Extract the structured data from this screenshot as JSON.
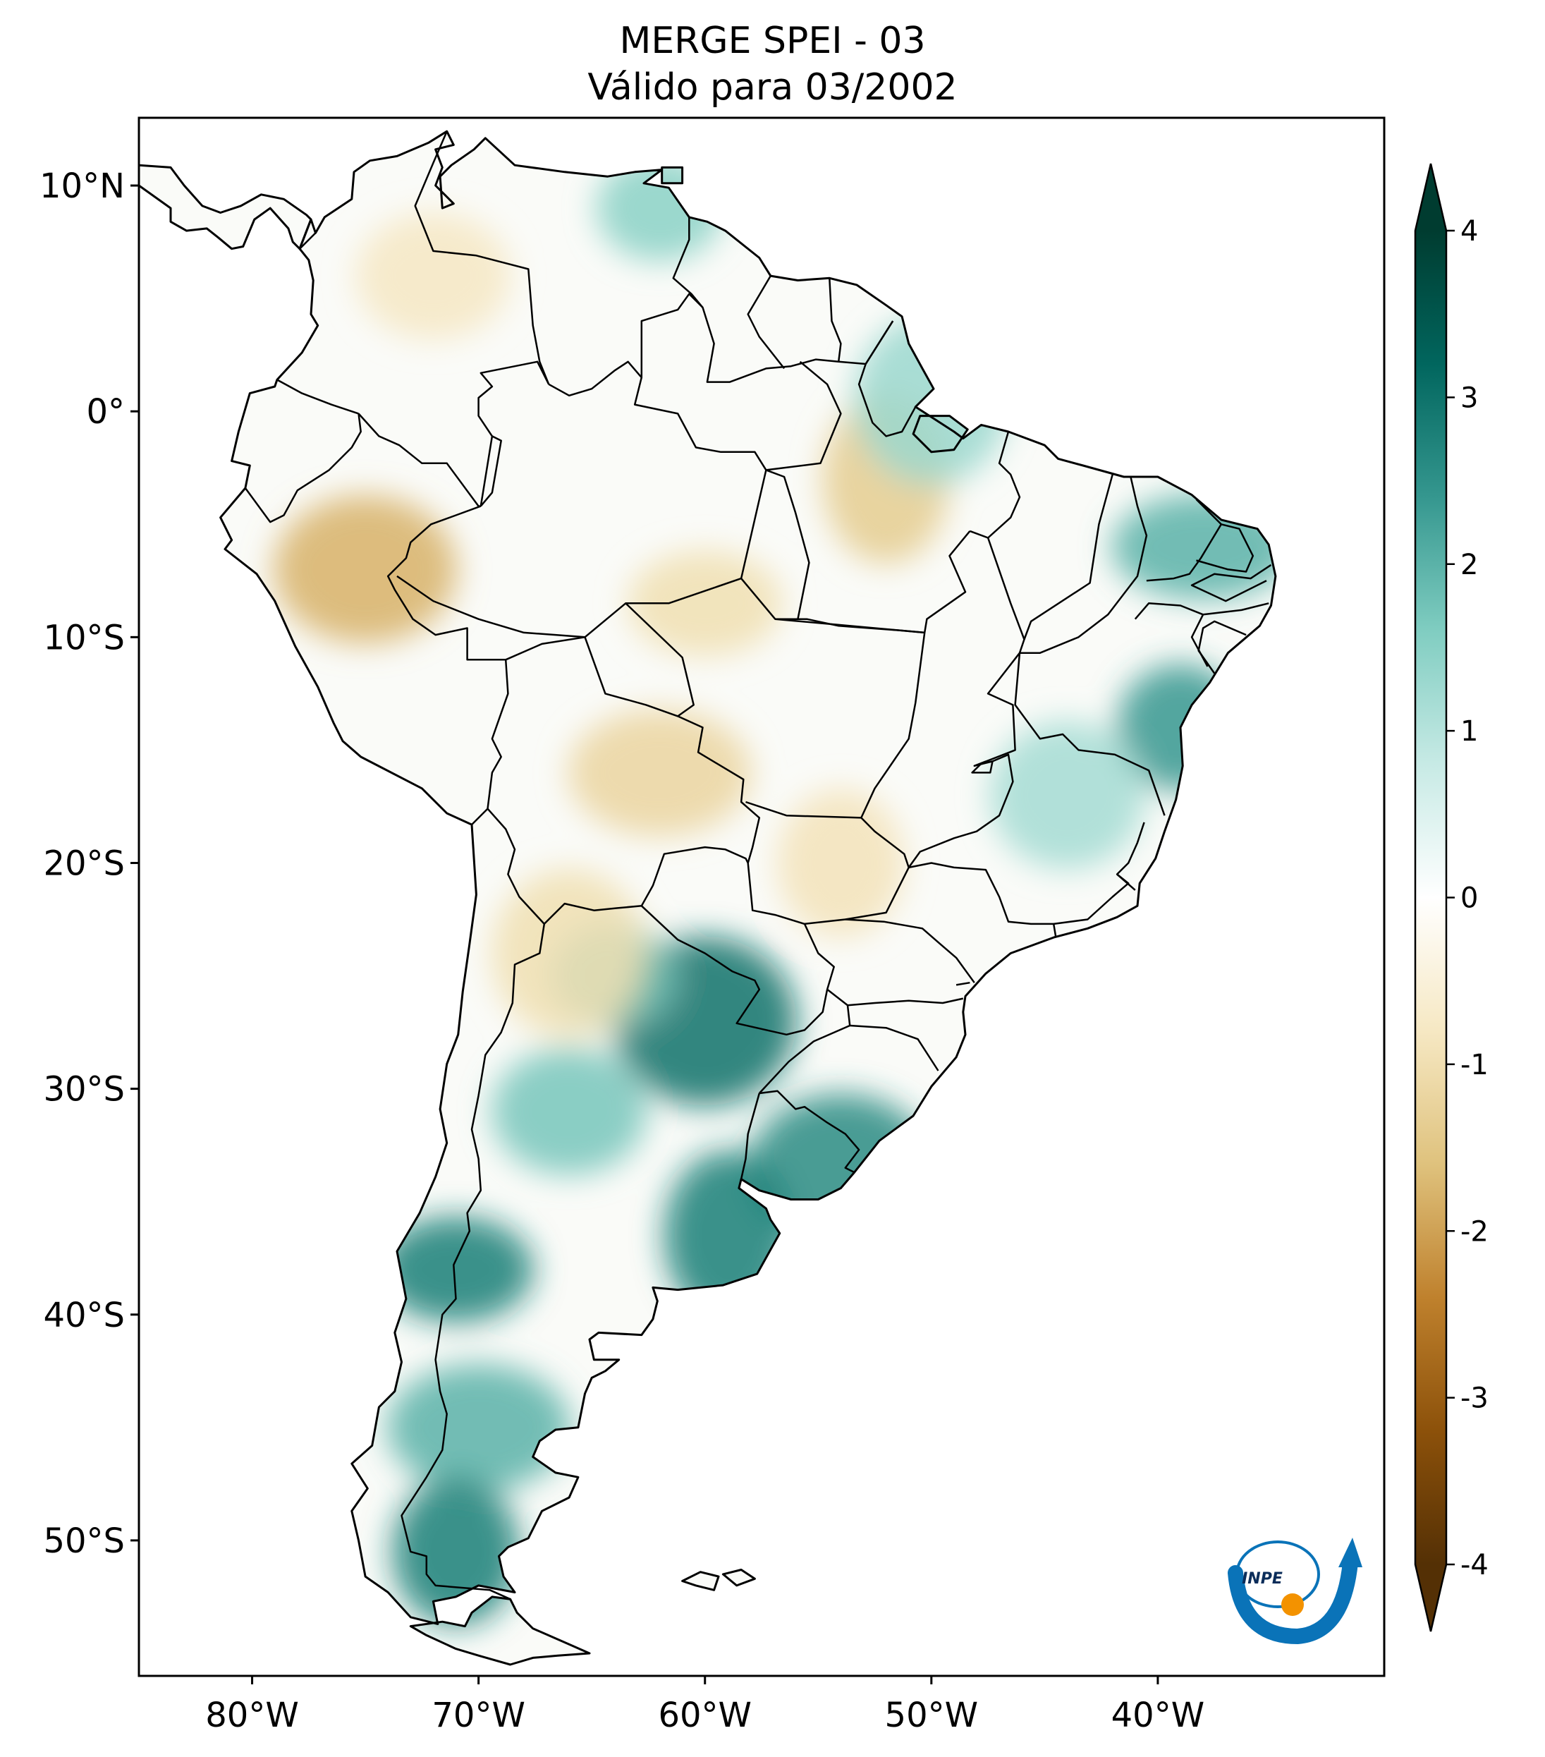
{
  "title": {
    "line1": "MERGE   SPEI - 03",
    "line2": "Válido para 03/2002"
  },
  "map": {
    "lon_range": [
      -85,
      -30
    ],
    "lat_range": [
      -56,
      13
    ],
    "lat_ticks": [
      {
        "value": 10,
        "label": "10°N"
      },
      {
        "value": 0,
        "label": "0°"
      },
      {
        "value": -10,
        "label": "10°S"
      },
      {
        "value": -20,
        "label": "20°S"
      },
      {
        "value": -30,
        "label": "30°S"
      },
      {
        "value": -40,
        "label": "40°S"
      },
      {
        "value": -50,
        "label": "50°S"
      }
    ],
    "lon_ticks": [
      {
        "value": -80,
        "label": "80°W"
      },
      {
        "value": -70,
        "label": "70°W"
      },
      {
        "value": -60,
        "label": "60°W"
      },
      {
        "value": -50,
        "label": "50°W"
      },
      {
        "value": -40,
        "label": "40°W"
      }
    ],
    "anomaly_regions": [
      {
        "lon": -62,
        "lat": 9,
        "value": 1.5
      },
      {
        "lon": -72,
        "lat": 6,
        "value": -0.8
      },
      {
        "lon": -75,
        "lat": -7,
        "value": -1.8
      },
      {
        "lon": -52,
        "lat": -3,
        "value": -1.4
      },
      {
        "lon": -60,
        "lat": -8.5,
        "value": -1.0
      },
      {
        "lon": -62,
        "lat": -16,
        "value": -1.2
      },
      {
        "lon": -54,
        "lat": -20,
        "value": -0.9
      },
      {
        "lon": -50,
        "lat": 0.5,
        "value": 1.3
      },
      {
        "lon": -38,
        "lat": -6,
        "value": 2.0
      },
      {
        "lon": -39,
        "lat": -14,
        "value": 2.4
      },
      {
        "lon": -44,
        "lat": -17,
        "value": 1.2
      },
      {
        "lon": -60,
        "lat": -27,
        "value": 3.0
      },
      {
        "lon": -64,
        "lat": -25,
        "value": 1.8
      },
      {
        "lon": -66,
        "lat": -31,
        "value": 1.7
      },
      {
        "lon": -54,
        "lat": -33.5,
        "value": 2.6
      },
      {
        "lon": -59,
        "lat": -36.5,
        "value": 2.8
      },
      {
        "lon": -71,
        "lat": -38,
        "value": 2.8
      },
      {
        "lon": -70,
        "lat": -45,
        "value": 2.0
      },
      {
        "lon": -71,
        "lat": -50.5,
        "value": 2.8
      },
      {
        "lon": -66,
        "lat": -24,
        "value": -1.0
      }
    ],
    "colors": {
      "land_border": "#000000",
      "frame": "#000000"
    }
  },
  "colorbar": {
    "ticks": [
      {
        "value": 4,
        "label": "4"
      },
      {
        "value": 3,
        "label": "3"
      },
      {
        "value": 2,
        "label": "2"
      },
      {
        "value": 1,
        "label": "1"
      },
      {
        "value": 0,
        "label": "0"
      },
      {
        "value": -1,
        "label": "-1"
      },
      {
        "value": -2,
        "label": "-2"
      },
      {
        "value": -3,
        "label": "-3"
      },
      {
        "value": -4,
        "label": "-4"
      }
    ],
    "colors": [
      "#543005",
      "#8c510a",
      "#bf812d",
      "#dfc27d",
      "#f6e8c3",
      "#ffffff",
      "#c7eae5",
      "#80cdc1",
      "#35978f",
      "#01665e",
      "#003c30"
    ],
    "extend": "both"
  },
  "logo": {
    "text": "INPE",
    "colors": {
      "blue": "#0a73b8",
      "orange": "#f39200"
    }
  }
}
